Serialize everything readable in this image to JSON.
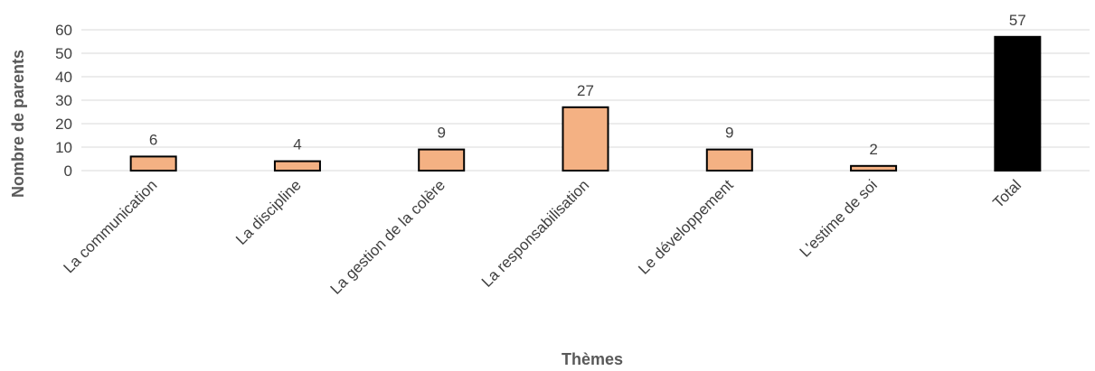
{
  "chart_data": {
    "type": "bar",
    "title": "",
    "xlabel": "Thèmes",
    "ylabel": "Nombre de parents",
    "ylim": [
      0,
      60
    ],
    "yticks": [
      0,
      10,
      20,
      30,
      40,
      50,
      60
    ],
    "grid": true,
    "legend": "none",
    "categories": [
      "La communication",
      "La discipline",
      "La gestion de la colère",
      "La responsabilisation",
      "Le développement",
      "L'estime de soi",
      "Total"
    ],
    "values": [
      6,
      4,
      9,
      27,
      9,
      2,
      57
    ],
    "colors": [
      "#f4b183",
      "#f4b183",
      "#f4b183",
      "#f4b183",
      "#f4b183",
      "#f4b183",
      "#000000"
    ]
  }
}
